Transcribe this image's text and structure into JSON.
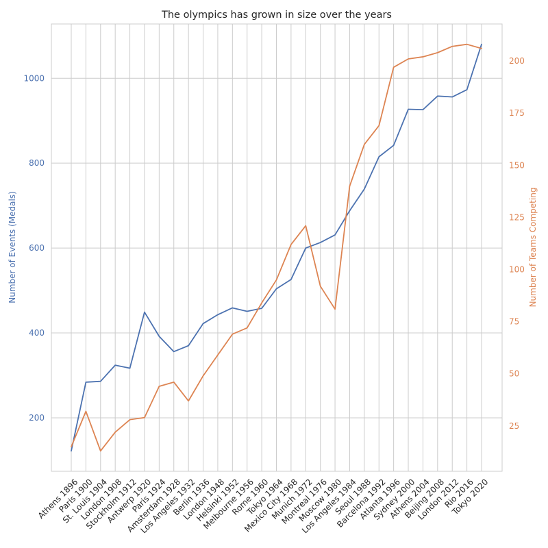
{
  "chart_data": {
    "type": "line",
    "title": "The olympics has grown in size over the years",
    "xlabel": "",
    "categories": [
      "Athens 1896",
      "Paris 1900",
      "St. Louis 1904",
      "London 1908",
      "Stockholm 1912",
      "Antwerp 1920",
      "Paris 1924",
      "Amsterdam 1928",
      "Los Angeles 1932",
      "Berlin 1936",
      "London 1948",
      "Helsinki 1952",
      "Melbourne 1956",
      "Rome 1960",
      "Tokyo 1964",
      "Mexico City 1968",
      "Munich 1972",
      "Montreal 1976",
      "Moscow 1980",
      "Los Angeles 1984",
      "Seoul 1988",
      "Barcelona 1992",
      "Atlanta 1996",
      "Sydney 2000",
      "Athens 2004",
      "Beijing 2008",
      "London 2012",
      "Rio 2016",
      "Tokyo 2020"
    ],
    "series": [
      {
        "name": "Number of Events (Medals)",
        "axis": "left",
        "color": "#4c72b0",
        "values": [
          122,
          284,
          286,
          324,
          317,
          449,
          392,
          356,
          370,
          422,
          443,
          459,
          451,
          458,
          504,
          526,
          600,
          613,
          631,
          688,
          739,
          815,
          842,
          927,
          926,
          958,
          956,
          973,
          1080
        ]
      },
      {
        "name": "Number of Teams Competing",
        "axis": "right",
        "color": "#dd8452",
        "values": [
          15,
          32,
          13,
          22,
          28,
          29,
          44,
          46,
          37,
          49,
          59,
          69,
          72,
          84,
          95,
          112,
          121,
          92,
          81,
          140,
          160,
          169,
          197,
          201,
          202,
          204,
          207,
          208,
          206
        ]
      }
    ],
    "left_axis": {
      "label": "Number of Events (Medals)",
      "ylim": [
        74.1,
        1127.9
      ],
      "ticks": [
        200,
        400,
        600,
        800,
        1000
      ],
      "color": "#4c72b0"
    },
    "right_axis": {
      "label": "Number of Teams Competing",
      "ylim": [
        3.25,
        217.75
      ],
      "ticks": [
        25,
        50,
        75,
        100,
        125,
        150,
        175,
        200
      ],
      "color": "#dd8452"
    },
    "grid": true,
    "legend": "none"
  }
}
